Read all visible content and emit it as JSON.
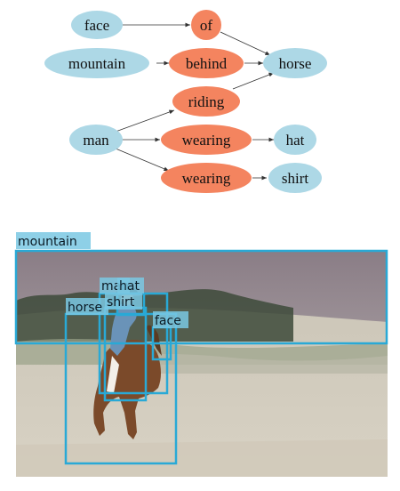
{
  "scene_graph": {
    "colors": {
      "object_fill": "#add8e6",
      "relation_fill": "#f4845f",
      "edge": "#333333"
    },
    "nodes": {
      "face": "face",
      "of": "of",
      "mountain": "mountain",
      "behind": "behind",
      "horse": "horse",
      "riding": "riding",
      "man": "man",
      "wearing_1": "wearing",
      "hat": "hat",
      "wearing_2": "wearing",
      "shirt": "shirt"
    }
  },
  "photo": {
    "box_color": "#29a9d6",
    "labels": {
      "mountain": "mountain",
      "horse": "horse",
      "man": "man",
      "hat": "hat",
      "shirt": "shirt",
      "face": "face"
    }
  }
}
